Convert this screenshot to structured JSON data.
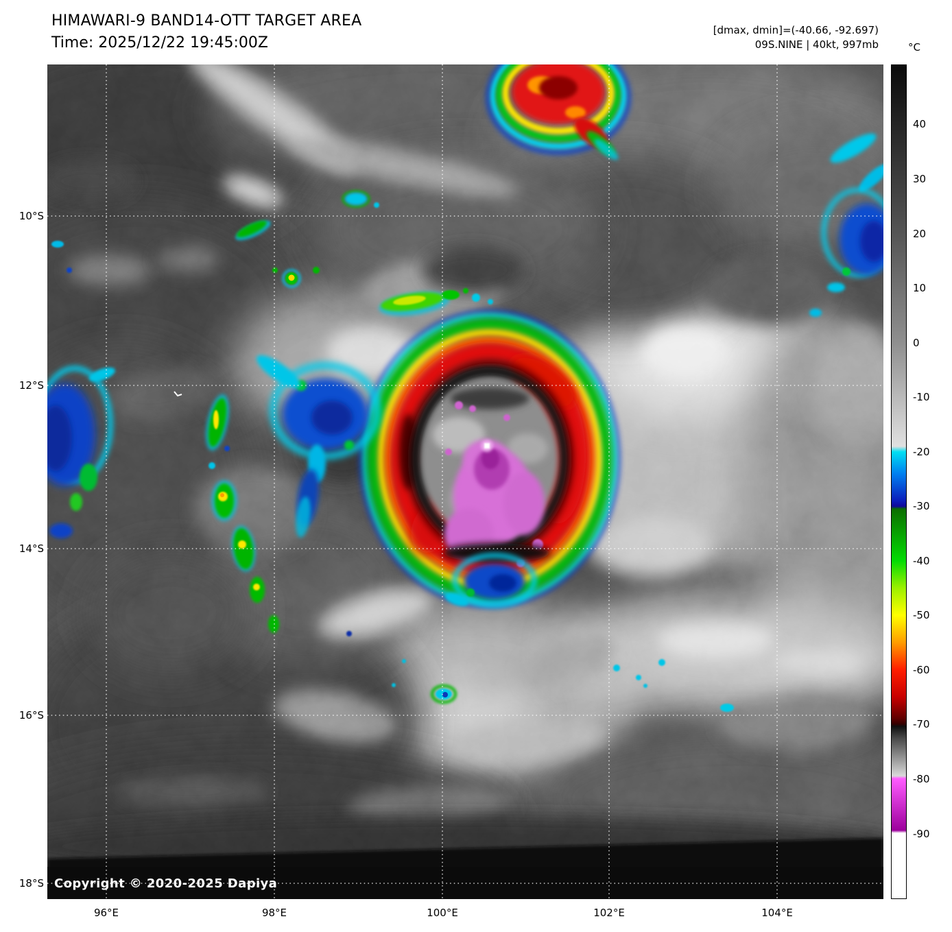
{
  "header": {
    "title": "HIMAWARI-9 BAND14-OTT TARGET AREA",
    "time_line": "Time: 2025/12/22 19:45:00Z",
    "dmax_dmin": "[dmax, dmin]=(-40.66, -92.697)",
    "storm_line": "09S.NINE | 40kt, 997mb"
  },
  "map": {
    "lat_labels": [
      "10°S",
      "12°S",
      "14°S",
      "16°S",
      "18°S"
    ],
    "lon_labels": [
      "96°E",
      "98°E",
      "100°E",
      "102°E",
      "104°E"
    ],
    "copyright": "Copyright © 2020-2025 Dapiya"
  },
  "colorbar": {
    "unit_label": "°C",
    "range_top_degc": 51,
    "range_bottom_degc": -102,
    "ticks": [
      "40",
      "30",
      "20",
      "10",
      "0",
      "-10",
      "-20",
      "-30",
      "-40",
      "-50",
      "-60",
      "-70",
      "-80",
      "-90"
    ],
    "stops": [
      {
        "t": 51,
        "c": "#0a0a0a"
      },
      {
        "t": 20,
        "c": "#555555"
      },
      {
        "t": 0,
        "c": "#8f8f8f"
      },
      {
        "t": -19,
        "c": "#e0e0e0"
      },
      {
        "t": -20,
        "c": "#00dff2"
      },
      {
        "t": -24,
        "c": "#0080f0"
      },
      {
        "t": -29,
        "c": "#0b1dbb"
      },
      {
        "t": -30,
        "c": "#10089a"
      },
      {
        "t": -30.5,
        "c": "#0b6e00"
      },
      {
        "t": -40,
        "c": "#03dc03"
      },
      {
        "t": -45,
        "c": "#9cf000"
      },
      {
        "t": -50,
        "c": "#ffff00"
      },
      {
        "t": -55,
        "c": "#ff9d00"
      },
      {
        "t": -60,
        "c": "#ff1e00"
      },
      {
        "t": -65,
        "c": "#c80000"
      },
      {
        "t": -69,
        "c": "#5e0000"
      },
      {
        "t": -70,
        "c": "#330000"
      },
      {
        "t": -70.4,
        "c": "#0f0f0f"
      },
      {
        "t": -72.5,
        "c": "#474747"
      },
      {
        "t": -79.5,
        "c": "#d9d9d9"
      },
      {
        "t": -80,
        "c": "#ff5cff"
      },
      {
        "t": -89.5,
        "c": "#9c009c"
      },
      {
        "t": -90,
        "c": "#ffffff"
      },
      {
        "t": -102,
        "c": "#ffffff"
      }
    ]
  }
}
